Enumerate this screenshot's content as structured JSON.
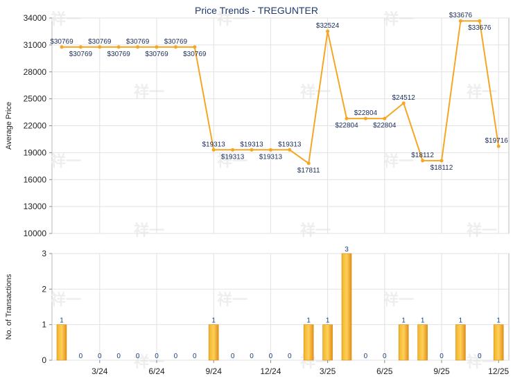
{
  "chart_data": [
    {
      "type": "line",
      "title": "Price Trends - TREGUNTER",
      "ylabel": "Average Price",
      "ylim": [
        10000,
        34000
      ],
      "yticks": [
        10000,
        13000,
        16000,
        19000,
        22000,
        25000,
        28000,
        31000,
        34000
      ],
      "xticks": [
        "3/24",
        "6/24",
        "9/24",
        "12/24",
        "3/25",
        "6/25",
        "9/25",
        "12/25"
      ],
      "grid": true,
      "series": [
        {
          "values": [
            30769,
            30769,
            30769,
            30769,
            30769,
            30769,
            30769,
            30769,
            19313,
            19313,
            19313,
            19313,
            19313,
            17811,
            32524,
            22804,
            22804,
            22804,
            24512,
            18112,
            18112,
            33676,
            33676,
            19716
          ],
          "labels": [
            "$30769",
            "$30769",
            "$30769",
            "$30769",
            "$30769",
            "$30769",
            "$30769",
            "$30769",
            "$19313",
            "$19313",
            "$19313",
            "$19313",
            "$19313",
            "$17811",
            "$32524",
            "$22804",
            "$22804",
            "$22804",
            "$24512",
            "$18112",
            "$18112",
            "$33676",
            "$33676",
            "$19716"
          ],
          "color": "#f5a623"
        }
      ]
    },
    {
      "type": "bar",
      "ylabel": "No. of Transactions",
      "ylim": [
        0,
        3
      ],
      "yticks": [
        0,
        1,
        2,
        3
      ],
      "xticks": [
        "3/24",
        "6/24",
        "9/24",
        "12/24",
        "3/25",
        "6/25",
        "9/25",
        "12/25"
      ],
      "grid": true,
      "values": [
        1,
        0,
        0,
        0,
        0,
        0,
        0,
        0,
        1,
        0,
        0,
        0,
        0,
        1,
        1,
        3,
        0,
        0,
        1,
        1,
        0,
        1,
        0,
        1
      ],
      "color": "#f5a623"
    }
  ]
}
